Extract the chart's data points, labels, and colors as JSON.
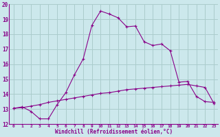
{
  "x": [
    0,
    1,
    2,
    3,
    4,
    5,
    6,
    7,
    8,
    9,
    10,
    11,
    12,
    13,
    14,
    15,
    16,
    17,
    18,
    19,
    20,
    21,
    22,
    23
  ],
  "upper_line": [
    13.05,
    13.15,
    12.85,
    12.35,
    12.35,
    13.3,
    14.1,
    15.3,
    16.35,
    18.6,
    19.55,
    19.35,
    19.1,
    18.5,
    18.55,
    17.5,
    17.25,
    17.35,
    16.9,
    14.8,
    14.85,
    13.85,
    13.5,
    13.45
  ],
  "lower_line": [
    13.05,
    13.1,
    13.2,
    13.3,
    13.45,
    13.55,
    13.65,
    13.75,
    13.85,
    13.95,
    14.05,
    14.1,
    14.2,
    14.3,
    14.35,
    14.4,
    14.45,
    14.5,
    14.55,
    14.6,
    14.65,
    14.55,
    14.45,
    13.4
  ],
  "line_color": "#880088",
  "bg_color": "#cce8ec",
  "grid_color": "#aacccc",
  "xlabel": "Windchill (Refroidissement éolien,°C)",
  "xlim": [
    -0.5,
    23.5
  ],
  "ylim": [
    12,
    20
  ],
  "yticks": [
    12,
    13,
    14,
    15,
    16,
    17,
    18,
    19,
    20
  ],
  "xticks": [
    0,
    1,
    2,
    3,
    4,
    5,
    6,
    7,
    8,
    9,
    10,
    11,
    12,
    13,
    14,
    15,
    16,
    17,
    18,
    19,
    20,
    21,
    22,
    23
  ]
}
